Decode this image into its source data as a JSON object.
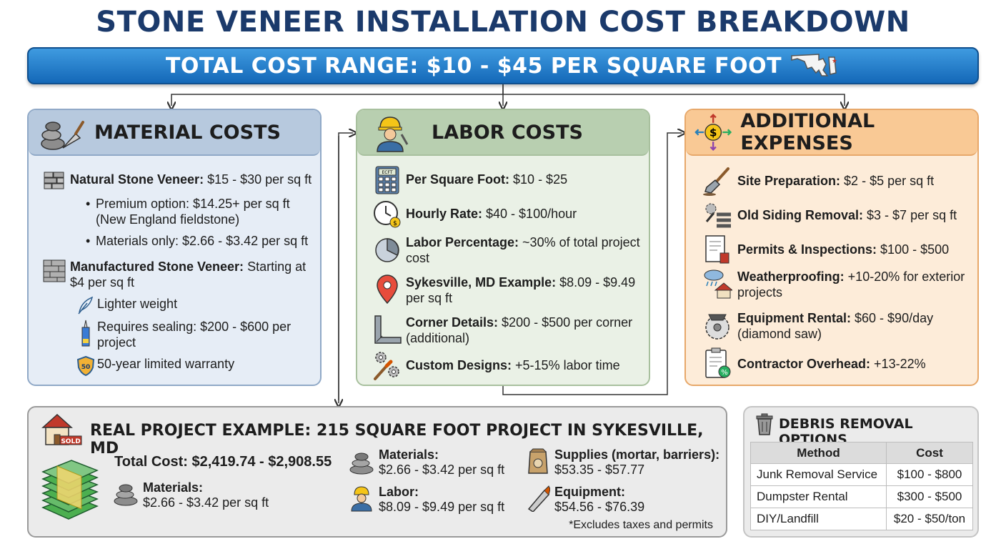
{
  "title": "STONE VENEER INSTALLATION COST BREAKDOWN",
  "banner": "TOTAL COST RANGE: $10 - $45 PER SQUARE FOOT",
  "material": {
    "title": "MATERIAL COSTS",
    "natural": {
      "label": "Natural Stone Veneer:",
      "value": " $15 - $30 per sq ft"
    },
    "bullets": [
      {
        "line1": "Premium option: $14.25+ per sq ft",
        "line2": "(New England fieldstone)"
      },
      {
        "line1": "Materials only: $2.66 - $3.42 per sq ft",
        "line2": ""
      }
    ],
    "manufactured": {
      "label": "Manufactured Stone Veneer:",
      "value": " Starting at",
      "line2": "$4 per sq ft"
    },
    "features": [
      {
        "line1": "Lighter weight",
        "line2": ""
      },
      {
        "line1": "Requires sealing: $200 - $600 per",
        "line2": "project"
      },
      {
        "line1": "50-year limited warranty",
        "line2": ""
      }
    ],
    "warranty_badge": "50"
  },
  "labor": {
    "title": "LABOR COSTS",
    "items": [
      {
        "label": "Per Square Foot:",
        "value": " $10 - $25",
        "line2": "",
        "icon": "calculator-icon"
      },
      {
        "label": "Hourly Rate:",
        "value": " $40 - $100/hour",
        "line2": "",
        "icon": "clock-icon"
      },
      {
        "label": "Labor Percentage:",
        "value": " ~30% of total project",
        "line2": "cost",
        "icon": "pie-chart-icon"
      },
      {
        "label": "Sykesville, MD Example:",
        "value": " $8.09 - $9.49",
        "line2": "per sq ft",
        "icon": "map-pin-icon"
      },
      {
        "label": "Corner Details:",
        "value": " $200 - $500 per corner",
        "line2": "(additional)",
        "icon": "corner-icon"
      },
      {
        "label": "Custom Designs:",
        "value": " +5-15% labor time",
        "line2": "",
        "icon": "gears-brush-icon"
      }
    ],
    "calc_screen": "ECFT"
  },
  "additional": {
    "title": "ADDITIONAL EXPENSES",
    "items": [
      {
        "label": "Site Preparation:",
        "value": " $2 - $5 per sq ft",
        "line2": "",
        "icon": "shovel-icon"
      },
      {
        "label": "Old Siding Removal:",
        "value": " $3 - $7 per sq ft",
        "line2": "",
        "icon": "siding-removal-icon"
      },
      {
        "label": "Permits & Inspections:",
        "value": " $100 - $500",
        "line2": "",
        "icon": "permit-document-icon"
      },
      {
        "label": "Weatherproofing:",
        "value": " +10-20% for exterior",
        "line2": "projects",
        "icon": "weather-house-icon"
      },
      {
        "label": "Equipment Rental:",
        "value": " $60 - $90/day",
        "line2": "(diamond saw)",
        "icon": "circular-saw-icon"
      },
      {
        "label": "Contractor Overhead:",
        "value": " +13-22%",
        "line2": "",
        "icon": "clipboard-percent-icon"
      }
    ]
  },
  "project": {
    "title": "REAL PROJECT EXAMPLE: 215 SQUARE FOOT PROJECT IN SYKESVILLE, MD",
    "sold": "SOLD",
    "total": "Total Cost: $2,419.74 - $2,908.55",
    "materials_a": {
      "label": "Materials:",
      "value": "$2.66 - $3.42 per sq ft"
    },
    "materials_b": {
      "label": "Materials:",
      "value": "$2.66 - $3.42 per sq ft"
    },
    "labor": {
      "label": "Labor:",
      "value": "$8.09 - $9.49 per sq ft"
    },
    "supplies": {
      "label": "Supplies (mortar, barriers):",
      "value": "$53.35 - $57.77"
    },
    "equipment": {
      "label": "Equipment:",
      "value": "$54.56 - $76.39"
    },
    "note": "*Excludes taxes and permits"
  },
  "debris": {
    "title": "DEBRIS REMOVAL OPTIONS",
    "headers": [
      "Method",
      "Cost"
    ],
    "rows": [
      [
        "Junk Removal Service",
        "$100 - $800"
      ],
      [
        "Dumpster Rental",
        "$300 - $500"
      ],
      [
        "DIY/Landfill",
        "$20 - $50/ton"
      ]
    ]
  }
}
